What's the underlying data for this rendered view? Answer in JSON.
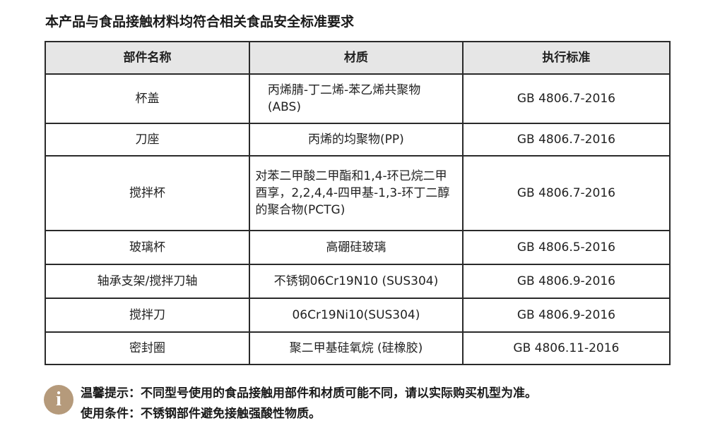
{
  "title": "本产品与食品接触材料均符合相关食品安全标准要求",
  "table": {
    "headers": [
      "部件名称",
      "材质",
      "执行标准"
    ],
    "rows": [
      {
        "part": "杯盖",
        "material": "丙烯腈-丁二烯-苯乙烯共聚物(ABS)",
        "standard": "GB 4806.7-2016"
      },
      {
        "part": "刀座",
        "material": "丙烯的均聚物(PP)",
        "standard": "GB 4806.7-2016"
      },
      {
        "part": "搅拌杯",
        "material": "对苯二甲酸二甲酯和1,4-环已烷二甲酉享，2,2,4,4-四甲基-1,3-环丁二醇的聚合物(PCTG)",
        "standard": "GB 4806.7-2016"
      },
      {
        "part": "玻璃杯",
        "material": "高硼硅玻璃",
        "standard": "GB 4806.5-2016"
      },
      {
        "part": "轴承支架/搅拌刀轴",
        "material": "不锈钢06Cr19N10 (SUS304)",
        "standard": "GB 4806.9-2016"
      },
      {
        "part": "搅拌刀",
        "material": "06Cr19Ni10(SUS304)",
        "standard": "GB 4806.9-2016"
      },
      {
        "part": "密封圈",
        "material": "聚二甲基硅氧烷 (硅橡胶)",
        "standard": "GB 4806.11-2016"
      }
    ]
  },
  "notes": {
    "icon": "info-icon",
    "icon_color": "#b59a7b",
    "tip": "温馨提示：不同型号使用的食品接触用部件和材质可能不同，请以实际购买机型为准。",
    "condition": "使用条件：不锈钢部件避免接触强酸性物质。"
  }
}
